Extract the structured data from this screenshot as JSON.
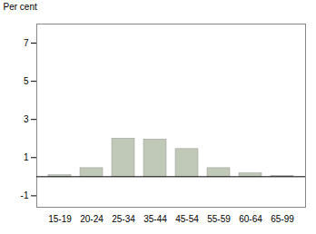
{
  "chart_data": {
    "type": "bar",
    "categories": [
      "15-19",
      "20-24",
      "25-34",
      "35-44",
      "45-54",
      "55-59",
      "60-64",
      "65-99"
    ],
    "values": [
      0.08,
      0.45,
      2.0,
      1.95,
      1.45,
      0.45,
      0.18,
      0.05
    ],
    "color": "#c0c8b8",
    "ylabel": "Per cent",
    "ylim": [
      -1.6,
      8.0
    ],
    "yticks": [
      -1,
      1,
      3,
      5,
      7
    ],
    "grid": false
  }
}
